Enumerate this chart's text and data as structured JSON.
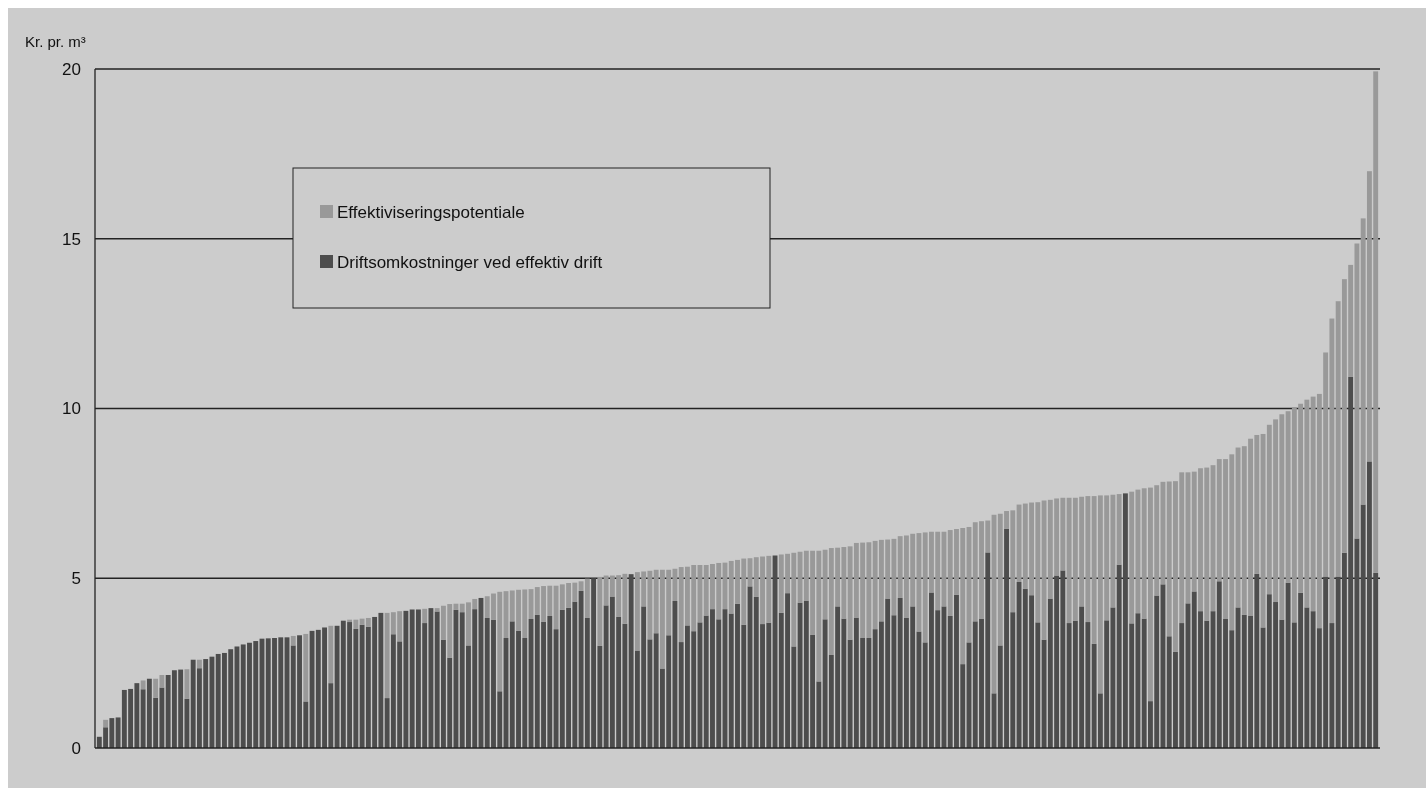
{
  "chart_data": {
    "type": "bar",
    "stacked": true,
    "ylabel": "Kr. pr. m³",
    "ylim": [
      0,
      20
    ],
    "yticks": [
      0,
      5,
      10,
      15,
      20
    ],
    "grid": "y",
    "legend": "top left",
    "tick_labels": "y",
    "categories": [
      null,
      null,
      null,
      null,
      null,
      null,
      null,
      null,
      null,
      null,
      null,
      null,
      null,
      null,
      null,
      null,
      null,
      null,
      null,
      null,
      null,
      null,
      null,
      null,
      null,
      null,
      null,
      null,
      null,
      null,
      null,
      null,
      null,
      null,
      null,
      null,
      null,
      null,
      null,
      null,
      null,
      null,
      null,
      null,
      null,
      null,
      null,
      null,
      null,
      null,
      null,
      null,
      null,
      null,
      null,
      null,
      null,
      null,
      null,
      null,
      null,
      null,
      null,
      null,
      null,
      null,
      null,
      null,
      null,
      null,
      null,
      null,
      null,
      null,
      null,
      null,
      null,
      null,
      null,
      null,
      null,
      null,
      null,
      null,
      null,
      null,
      null,
      null,
      null,
      null,
      null,
      null,
      null,
      null,
      null,
      null,
      null,
      null,
      null,
      null,
      null,
      null,
      null,
      null,
      null,
      null,
      null,
      null,
      null,
      null,
      null,
      null,
      null,
      null,
      null,
      null,
      null,
      null,
      null,
      null,
      null,
      null,
      null,
      null,
      null,
      null,
      null,
      null,
      null,
      null,
      null,
      null,
      null,
      null,
      null,
      null,
      null,
      null,
      null,
      null,
      null,
      null,
      null,
      null,
      null,
      null,
      null,
      null,
      null,
      null,
      null,
      null,
      null,
      null,
      null,
      null,
      null,
      null,
      null,
      null,
      null,
      null,
      null,
      null,
      null,
      null,
      null,
      null,
      null,
      null,
      null,
      null,
      null,
      null,
      null,
      null,
      null,
      null,
      null,
      null,
      null,
      null,
      null,
      null,
      null,
      null,
      null,
      null,
      null,
      null,
      null,
      null,
      null,
      null,
      null,
      null,
      null,
      null,
      null,
      null,
      null,
      null,
      null,
      null,
      null
    ],
    "series": [
      {
        "name": "Driftsomkostninger ved effektiv drift",
        "color": "#4d4d4d",
        "values": [
          0.33,
          0.61,
          0.88,
          0.9,
          1.71,
          1.74,
          1.91,
          1.73,
          2.04,
          1.48,
          1.78,
          2.15,
          2.29,
          2.31,
          1.45,
          2.6,
          2.35,
          2.62,
          2.69,
          2.77,
          2.8,
          2.91,
          2.99,
          3.05,
          3.1,
          3.15,
          3.22,
          3.23,
          3.24,
          3.26,
          3.26,
          3.02,
          3.32,
          1.37,
          3.45,
          3.48,
          3.55,
          1.91,
          3.6,
          3.75,
          3.71,
          3.51,
          3.63,
          3.57,
          3.86,
          3.98,
          1.47,
          3.35,
          3.14,
          4.04,
          4.08,
          4.08,
          3.68,
          4.12,
          4.02,
          3.19,
          2.66,
          4.07,
          4.0,
          3.02,
          4.09,
          4.42,
          3.83,
          3.78,
          1.67,
          3.24,
          3.73,
          3.45,
          3.24,
          3.8,
          3.92,
          3.72,
          3.89,
          3.5,
          4.07,
          4.13,
          4.31,
          4.63,
          3.83,
          5.0,
          3.01,
          4.2,
          4.46,
          3.86,
          3.66,
          5.12,
          2.87,
          4.17,
          3.2,
          3.38,
          2.34,
          3.32,
          4.33,
          3.12,
          3.61,
          3.44,
          3.7,
          3.9,
          4.09,
          3.79,
          4.09,
          3.96,
          4.25,
          3.63,
          4.76,
          4.45,
          3.65,
          3.69,
          5.67,
          3.98,
          4.56,
          2.99,
          4.28,
          4.34,
          3.33,
          1.96,
          3.79,
          2.74,
          4.17,
          3.81,
          3.19,
          3.84,
          3.24,
          3.24,
          3.5,
          3.73,
          4.4,
          3.91,
          4.42,
          3.83,
          4.17,
          3.43,
          3.11,
          4.58,
          4.06,
          4.17,
          3.89,
          4.51,
          2.47,
          3.11,
          3.73,
          3.81,
          5.76,
          1.61,
          3.02,
          6.46,
          4.0,
          4.89,
          4.69,
          4.5,
          3.7,
          3.19,
          4.4,
          5.08,
          5.23,
          3.68,
          3.75,
          4.17,
          3.71,
          3.07,
          1.61,
          3.76,
          4.14,
          5.4,
          7.5,
          3.67,
          3.97,
          3.81,
          1.38,
          4.49,
          4.82,
          3.29,
          2.83,
          3.68,
          4.26,
          4.61,
          4.03,
          3.75,
          4.03,
          4.91,
          3.8,
          3.47,
          4.14,
          3.92,
          3.9,
          5.13,
          3.55,
          4.53,
          4.3,
          3.78,
          4.87,
          3.7,
          4.57,
          4.14,
          4.03,
          3.53,
          5.05,
          3.68,
          5.05,
          5.75,
          10.93,
          6.17,
          7.17,
          8.44,
          5.16
        ]
      },
      {
        "name": "Effektiviseringspotentiale",
        "color": "#999999",
        "values": [
          0,
          0.22,
          0,
          0,
          0,
          0,
          0,
          0.26,
          0,
          0.56,
          0.37,
          0,
          0,
          0,
          0.87,
          0,
          0.25,
          0,
          0,
          0,
          0,
          0,
          0,
          0,
          0,
          0,
          0,
          0,
          0,
          0,
          0,
          0.28,
          0,
          1.99,
          0,
          0,
          0,
          1.69,
          0,
          0,
          0.07,
          0.27,
          0.18,
          0.26,
          0,
          0,
          2.51,
          0.65,
          0.89,
          0,
          0,
          0,
          0.42,
          0,
          0.1,
          1.0,
          1.58,
          0.18,
          0.25,
          1.27,
          0.3,
          0,
          0.64,
          0.77,
          2.93,
          1.38,
          0.91,
          1.21,
          1.43,
          0.88,
          0.82,
          1.05,
          0.89,
          1.28,
          0.75,
          0.73,
          0.56,
          0.28,
          1.16,
          0,
          2.03,
          0.88,
          0.62,
          1.23,
          1.47,
          0,
          2.31,
          1.03,
          2.02,
          1.87,
          2.91,
          1.93,
          0.95,
          2.21,
          1.73,
          1.95,
          1.69,
          1.49,
          1.33,
          1.66,
          1.37,
          1.55,
          1.29,
          1.95,
          0.83,
          1.17,
          1.99,
          1.97,
          0,
          1.72,
          1.16,
          2.76,
          1.5,
          1.47,
          2.48,
          3.85,
          2.05,
          3.15,
          1.73,
          2.11,
          2.75,
          2.2,
          2.81,
          2.82,
          2.6,
          2.4,
          1.74,
          2.25,
          1.82,
          2.43,
          2.14,
          2.9,
          3.24,
          1.79,
          2.31,
          2.2,
          2.53,
          1.94,
          4.01,
          3.4,
          2.92,
          2.87,
          0.94,
          5.26,
          3.88,
          0.52,
          3.0,
          2.28,
          2.51,
          2.73,
          3.54,
          4.1,
          2.91,
          2.27,
          2.14,
          3.69,
          3.62,
          3.23,
          3.71,
          4.35,
          5.83,
          3.68,
          3.32,
          2.08,
          0,
          3.88,
          3.64,
          3.84,
          6.29,
          3.25,
          3.02,
          4.56,
          5.03,
          4.44,
          3.86,
          3.53,
          4.21,
          4.51,
          4.3,
          3.6,
          4.71,
          5.18,
          4.71,
          4.97,
          5.21,
          4.09,
          5.7,
          4.99,
          5.38,
          6.05,
          5.05,
          6.34,
          5.57,
          6.12,
          6.32,
          6.9,
          6.6,
          8.97,
          8.11,
          8.06,
          3.3,
          8.69,
          8.43,
          8.55,
          14.77
        ]
      }
    ]
  }
}
